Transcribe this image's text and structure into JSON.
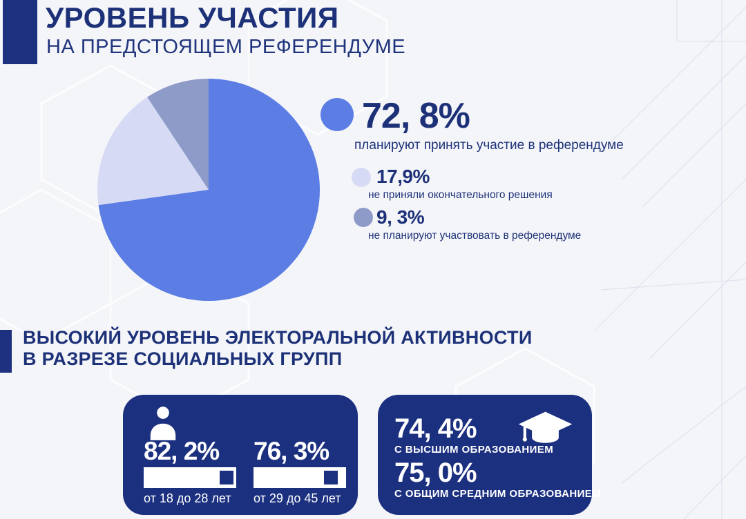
{
  "header": {
    "title": "УРОВЕНЬ УЧАСТИЯ",
    "subtitle": "НА ПРЕДСТОЯЩЕМ РЕФЕРЕНДУМЕ"
  },
  "colors": {
    "navy": "#1c3080",
    "pie_main": "#5b7de4",
    "pie_undecided": "#d7daf5",
    "pie_no": "#8e9ac8",
    "background": "#f4f5f9"
  },
  "chart_data": {
    "type": "pie",
    "title": "Уровень участия на предстоящем референдуме",
    "start_angle_deg": 0,
    "direction": "clockwise",
    "legend_position": "right",
    "slices": [
      {
        "display": "72, 8%",
        "value": 72.8,
        "label": "планируют принять участие в референдуме",
        "color": "#5b7de4"
      },
      {
        "display": "17,9%",
        "value": 17.9,
        "label": "не приняли окончательного решения",
        "color": "#d7daf5"
      },
      {
        "display": "9, 3%",
        "value": 9.3,
        "label": "не планируют участвовать в референдуме",
        "color": "#8e9ac8"
      }
    ]
  },
  "section2": {
    "heading_line1": "ВЫСОКИЙ УРОВЕНЬ ЭЛЕКТОРАЛЬНОЙ АКТИВНОСТИ",
    "heading_line2": "В РАЗРЕЗЕ СОЦИАЛЬНЫХ ГРУПП",
    "age_card": {
      "icon": "person-icon",
      "stats": [
        {
          "value": "82, 2%",
          "pct": 82.2,
          "label": "от 18 до 28 лет"
        },
        {
          "value": "76, 3%",
          "pct": 76.3,
          "label": "от 29 до 45 лет"
        }
      ]
    },
    "education_card": {
      "icon": "graduation-cap-icon",
      "stats": [
        {
          "value": "74, 4%",
          "pct": 74.4,
          "label": "С ВЫСШИМ ОБРАЗОВАНИЕМ"
        },
        {
          "value": "75, 0%",
          "pct": 75.0,
          "label": "С ОБЩИМ СРЕДНИМ ОБРАЗОВАНИЕМ"
        }
      ]
    }
  }
}
